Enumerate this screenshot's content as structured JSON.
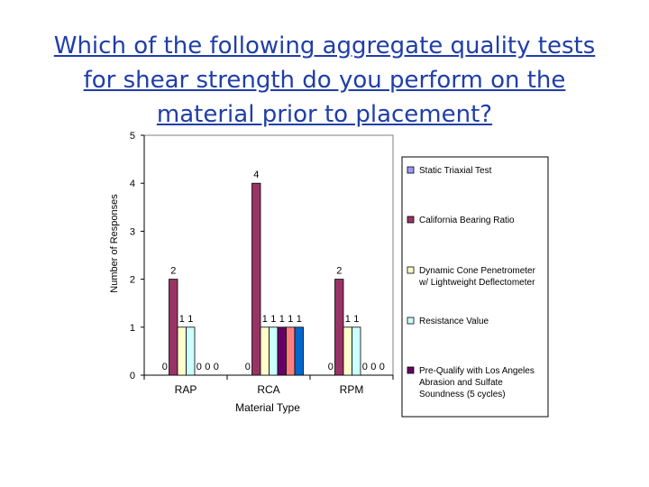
{
  "title": "Which of the following aggregate quality tests for shear strength do you perform on the material prior to placement?",
  "chart_data": {
    "type": "bar",
    "xlabel": "Material Type",
    "ylabel": "Number of Responses",
    "ylim": [
      0,
      5
    ],
    "yticks": [
      0,
      1,
      2,
      3,
      4,
      5
    ],
    "grid": false,
    "legend_position": "right",
    "categories": [
      "RAP",
      "RCA",
      "RPM"
    ],
    "series": [
      {
        "name": "Static Triaxial Test",
        "values": [
          0,
          0,
          0
        ],
        "color": "#9999ff"
      },
      {
        "name": "California Bearing Ratio",
        "values": [
          2,
          4,
          2
        ],
        "color": "#993366"
      },
      {
        "name": "Dynamic Cone Penetrometer w/ Lightweight Deflectometer",
        "values": [
          1,
          1,
          1
        ],
        "color": "#ffffcc"
      },
      {
        "name": "Resistance Value",
        "values": [
          1,
          1,
          1
        ],
        "color": "#ccffff"
      },
      {
        "name": "Pre-Qualify with Los Angeles Abrasion and Sulfate Soundness (5 cycles)",
        "values": [
          0,
          1,
          0
        ],
        "color": "#660066"
      },
      {
        "name": "",
        "values": [
          0,
          1,
          0
        ],
        "color": "#ff8080"
      },
      {
        "name": "",
        "values": [
          0,
          1,
          0
        ],
        "color": "#0066cc"
      }
    ]
  }
}
